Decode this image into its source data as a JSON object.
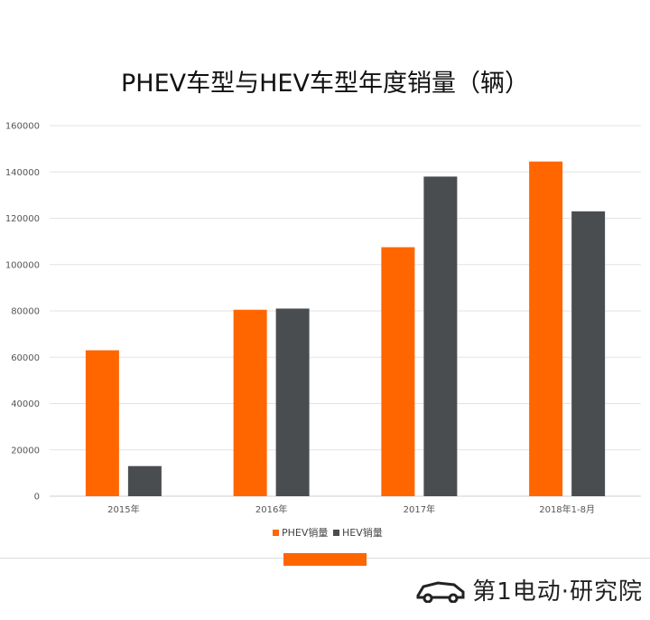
{
  "chart_data": {
    "type": "bar",
    "title": "PHEV车型与HEV车型年度销量（辆）",
    "categories": [
      "2015年",
      "2016年",
      "2017年",
      "2018年1-8月"
    ],
    "series": [
      {
        "name": "PHEV销量",
        "color": "#ff6600",
        "values": [
          63000,
          80500,
          107500,
          144500
        ]
      },
      {
        "name": "HEV销量",
        "color": "#4a4d50",
        "values": [
          13000,
          81000,
          138000,
          123000
        ]
      }
    ],
    "y_ticks": [
      "0",
      "20000",
      "40000",
      "60000",
      "80000",
      "100000",
      "120000",
      "140000",
      "160000"
    ],
    "ylim": [
      0,
      160000
    ],
    "grid": true,
    "legend_position": "bottom"
  },
  "branding": {
    "logo_text": "第1电动·研究院",
    "logo_icon": "car-logo-icon",
    "accent_color": "#ff6600"
  }
}
